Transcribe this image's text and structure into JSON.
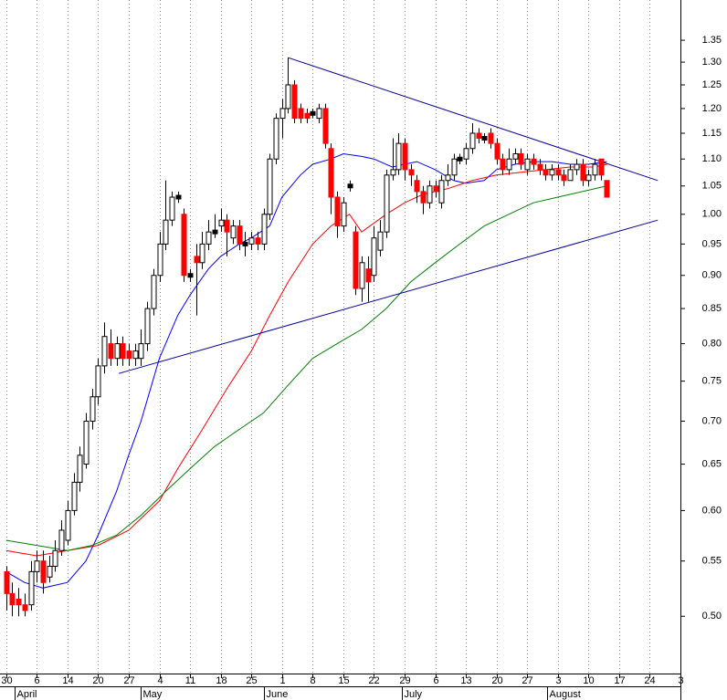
{
  "chart_data": {
    "type": "candlestick",
    "log": true,
    "xgrid": true,
    "xlim": [
      -1,
      110
    ],
    "ylim": [
      0.453,
      1.447
    ],
    "yticks": [
      {
        "value": 0.5,
        "label": "0.50"
      },
      0.55,
      {
        "value": 0.6,
        "label": "0.60"
      },
      0.65,
      {
        "value": 0.7,
        "label": "0.70"
      },
      0.75,
      {
        "value": 0.8,
        "label": "0.80"
      },
      0.85,
      {
        "value": 0.9,
        "label": "0.90"
      },
      0.95,
      {
        "value": 1,
        "label": "1.00"
      },
      1.05,
      {
        "value": 1.1,
        "label": "1.10"
      },
      1.15,
      {
        "value": 1.2,
        "label": "1.20"
      },
      1.25,
      {
        "value": 1.3,
        "label": "1.30"
      },
      1.35
    ],
    "xticks": [
      {
        "value": 0,
        "label": "30"
      },
      {
        "value": 5,
        "label": "6"
      },
      {
        "value": 10,
        "label": "14"
      },
      {
        "value": 15,
        "label": "20"
      },
      {
        "value": 20,
        "label": "27"
      },
      {
        "value": 25,
        "label": "4"
      },
      {
        "value": 30,
        "label": "11"
      },
      {
        "value": 35,
        "label": "18"
      },
      {
        "value": 40,
        "label": "25"
      },
      {
        "value": 45,
        "label": "1"
      },
      {
        "value": 50,
        "label": "8"
      },
      {
        "value": 55,
        "label": "15"
      },
      {
        "value": 60,
        "label": "22"
      },
      {
        "value": 65,
        "label": "29"
      },
      {
        "value": 70,
        "label": "6"
      },
      {
        "value": 75,
        "label": "13"
      },
      {
        "value": 80,
        "label": "20"
      },
      {
        "value": 85,
        "label": "27"
      },
      {
        "value": 90,
        "label": "3"
      },
      {
        "value": 95,
        "label": "10"
      },
      {
        "value": 100,
        "label": "17"
      },
      {
        "value": 105,
        "label": "24"
      },
      {
        "value": 110,
        "label": "3"
      }
    ],
    "months": [
      {
        "value": 1.4,
        "label": "April"
      },
      {
        "value": 22,
        "label": "May"
      },
      {
        "value": 42,
        "label": "June"
      },
      {
        "value": 64.5,
        "label": "July"
      },
      {
        "value": 88.2,
        "label": "August"
      }
    ],
    "up_color": "#ffffff",
    "down_color": "#ff0000",
    "candles": {
      "x": [
        0,
        1,
        2,
        3,
        4,
        5,
        6,
        7,
        8,
        9,
        10,
        11,
        12,
        13,
        14,
        15,
        16,
        17,
        18,
        19,
        20,
        21,
        22,
        23,
        24,
        25,
        26,
        27,
        28,
        29,
        30,
        31,
        32,
        33,
        34,
        35,
        36,
        37,
        38,
        39,
        40,
        41,
        42,
        43,
        44,
        45,
        46,
        47,
        48,
        49,
        50,
        51,
        52,
        53,
        54,
        55,
        56,
        57,
        58,
        59,
        60,
        61,
        62,
        63,
        64,
        65,
        66,
        67,
        68,
        69,
        70,
        71,
        72,
        73,
        74,
        75,
        76,
        77,
        78,
        79,
        80,
        81,
        82,
        83,
        84,
        85,
        86,
        87,
        88,
        89,
        90,
        91,
        92,
        93,
        94,
        95,
        96,
        97,
        98
      ],
      "open": [
        0.54,
        0.52,
        0.515,
        0.51,
        0.51,
        0.54,
        0.55,
        0.535,
        0.545,
        0.56,
        0.57,
        0.6,
        0.63,
        0.65,
        0.7,
        0.73,
        0.77,
        0.8,
        0.78,
        0.8,
        0.79,
        0.78,
        0.78,
        0.8,
        0.85,
        0.9,
        0.95,
        0.99,
        1.03,
        1.0,
        0.9,
        0.93,
        0.92,
        0.95,
        0.97,
        0.98,
        0.99,
        0.96,
        0.98,
        0.95,
        0.95,
        0.96,
        0.95,
        1.0,
        1.1,
        1.18,
        1.2,
        1.25,
        1.2,
        1.19,
        1.19,
        1.18,
        1.2,
        1.12,
        1.03,
        0.98,
        1.05,
        0.97,
        0.88,
        0.91,
        0.9,
        0.94,
        0.97,
        1.07,
        1.08,
        1.13,
        1.08,
        1.06,
        1.04,
        1.02,
        1.05,
        1.02,
        1.06,
        1.07,
        1.1,
        1.1,
        1.12,
        1.15,
        1.14,
        1.15,
        1.13,
        1.1,
        1.08,
        1.1,
        1.11,
        1.08,
        1.1,
        1.09,
        1.08,
        1.07,
        1.08,
        1.07,
        1.06,
        1.08,
        1.09,
        1.06,
        1.07,
        1.1,
        1.06
      ],
      "high": [
        0.545,
        0.53,
        0.525,
        0.52,
        0.55,
        0.56,
        0.56,
        0.555,
        0.57,
        0.59,
        0.61,
        0.64,
        0.67,
        0.71,
        0.74,
        0.78,
        0.83,
        0.82,
        0.81,
        0.81,
        0.8,
        0.8,
        0.82,
        0.86,
        0.91,
        0.97,
        1.06,
        1.04,
        1.04,
        1.01,
        0.91,
        0.95,
        0.97,
        0.99,
        1.0,
        1.01,
        1.0,
        0.99,
        0.99,
        0.97,
        0.97,
        0.97,
        1.01,
        1.11,
        1.19,
        1.22,
        1.31,
        1.26,
        1.21,
        1.2,
        1.2,
        1.21,
        1.21,
        1.13,
        1.04,
        1.03,
        1.06,
        0.98,
        0.93,
        0.93,
        0.98,
        0.99,
        1.08,
        1.14,
        1.15,
        1.14,
        1.09,
        1.07,
        1.05,
        1.06,
        1.06,
        1.07,
        1.09,
        1.11,
        1.11,
        1.13,
        1.17,
        1.16,
        1.15,
        1.16,
        1.14,
        1.11,
        1.12,
        1.12,
        1.12,
        1.11,
        1.11,
        1.1,
        1.09,
        1.09,
        1.09,
        1.08,
        1.09,
        1.1,
        1.1,
        1.08,
        1.1,
        1.1,
        1.06
      ],
      "low": [
        0.505,
        0.5,
        0.5,
        0.5,
        0.505,
        0.53,
        0.52,
        0.53,
        0.54,
        0.555,
        0.565,
        0.595,
        0.62,
        0.645,
        0.69,
        0.72,
        0.76,
        0.77,
        0.77,
        0.77,
        0.77,
        0.77,
        0.77,
        0.79,
        0.84,
        0.89,
        0.94,
        0.98,
        1.02,
        0.89,
        0.89,
        0.84,
        0.91,
        0.94,
        0.96,
        0.97,
        0.93,
        0.95,
        0.94,
        0.93,
        0.94,
        0.94,
        0.94,
        0.99,
        1.09,
        1.14,
        1.19,
        1.17,
        1.17,
        1.17,
        1.18,
        1.17,
        1.12,
        1.0,
        0.96,
        0.97,
        1.04,
        0.87,
        0.86,
        0.86,
        0.89,
        0.93,
        0.96,
        1.06,
        1.07,
        1.06,
        1.05,
        1.02,
        1.0,
        1.01,
        1.03,
        1.01,
        1.05,
        1.06,
        1.09,
        1.09,
        1.11,
        1.13,
        1.13,
        1.12,
        1.09,
        1.07,
        1.07,
        1.09,
        1.08,
        1.07,
        1.08,
        1.07,
        1.06,
        1.06,
        1.06,
        1.05,
        1.06,
        1.07,
        1.05,
        1.05,
        1.06,
        1.06,
        1.03
      ],
      "close": [
        0.52,
        0.51,
        0.51,
        0.505,
        0.54,
        0.55,
        0.53,
        0.545,
        0.56,
        0.58,
        0.6,
        0.63,
        0.66,
        0.7,
        0.73,
        0.77,
        0.81,
        0.78,
        0.8,
        0.78,
        0.78,
        0.79,
        0.8,
        0.85,
        0.9,
        0.95,
        0.99,
        1.03,
        1.03,
        0.9,
        0.9,
        0.92,
        0.95,
        0.97,
        0.97,
        0.99,
        0.97,
        0.98,
        0.95,
        0.95,
        0.96,
        0.95,
        1.0,
        1.1,
        1.18,
        1.2,
        1.25,
        1.18,
        1.18,
        1.18,
        1.19,
        1.2,
        1.13,
        1.03,
        0.98,
        1.02,
        1.05,
        0.88,
        0.92,
        0.89,
        0.96,
        0.97,
        1.07,
        1.08,
        1.13,
        1.08,
        1.07,
        1.04,
        1.02,
        1.05,
        1.04,
        1.06,
        1.07,
        1.1,
        1.1,
        1.12,
        1.15,
        1.14,
        1.14,
        1.13,
        1.1,
        1.08,
        1.1,
        1.11,
        1.09,
        1.1,
        1.09,
        1.08,
        1.07,
        1.08,
        1.07,
        1.06,
        1.08,
        1.09,
        1.06,
        1.07,
        1.09,
        1.07,
        1.03
      ]
    },
    "series": [
      {
        "color": "#0000ff",
        "x": [
          0,
          3,
          6,
          10,
          13,
          15,
          18,
          20,
          22,
          25,
          28,
          30,
          33,
          35,
          38,
          40,
          43,
          45,
          48,
          50,
          53,
          55,
          58,
          60,
          63,
          65,
          67,
          70,
          73,
          75,
          78,
          80,
          83,
          86,
          89,
          92,
          95,
          98
        ],
        "values": [
          0.54,
          0.53,
          0.525,
          0.53,
          0.55,
          0.575,
          0.62,
          0.66,
          0.7,
          0.78,
          0.84,
          0.87,
          0.91,
          0.93,
          0.95,
          0.96,
          0.98,
          1.03,
          1.07,
          1.09,
          1.1,
          1.11,
          1.105,
          1.1,
          1.085,
          1.09,
          1.095,
          1.08,
          1.06,
          1.055,
          1.06,
          1.08,
          1.09,
          1.095,
          1.095,
          1.09,
          1.09,
          1.095
        ]
      },
      {
        "color": "#ff0000",
        "x": [
          0,
          5,
          10,
          15,
          20,
          25,
          28,
          32,
          36,
          40,
          43,
          46,
          50,
          53,
          56,
          58,
          62,
          65,
          68,
          72,
          76,
          80,
          84,
          88,
          92,
          96,
          98
        ],
        "values": [
          0.56,
          0.555,
          0.56,
          0.565,
          0.58,
          0.61,
          0.645,
          0.69,
          0.74,
          0.79,
          0.84,
          0.89,
          0.95,
          0.98,
          1.0,
          0.97,
          1.0,
          1.02,
          1.035,
          1.045,
          1.06,
          1.07,
          1.075,
          1.08,
          1.085,
          1.085,
          1.09
        ]
      },
      {
        "color": "#008000",
        "x": [
          0,
          5,
          10,
          14,
          18,
          22,
          26,
          30,
          34,
          38,
          42,
          46,
          50,
          54,
          58,
          62,
          66,
          70,
          74,
          78,
          82,
          86,
          90,
          94,
          98
        ],
        "values": [
          0.57,
          0.565,
          0.56,
          0.565,
          0.575,
          0.595,
          0.62,
          0.645,
          0.67,
          0.69,
          0.71,
          0.745,
          0.78,
          0.8,
          0.82,
          0.85,
          0.89,
          0.92,
          0.95,
          0.98,
          1.0,
          1.02,
          1.03,
          1.04,
          1.05
        ]
      }
    ],
    "trendlines": [
      {
        "color": "#0000a0",
        "x": [
          46,
          106.3
        ],
        "values": [
          1.31,
          1.06
        ]
      },
      {
        "color": "#0000a0",
        "x": [
          18.4,
          106.3
        ],
        "values": [
          0.76,
          0.99
        ]
      }
    ]
  }
}
